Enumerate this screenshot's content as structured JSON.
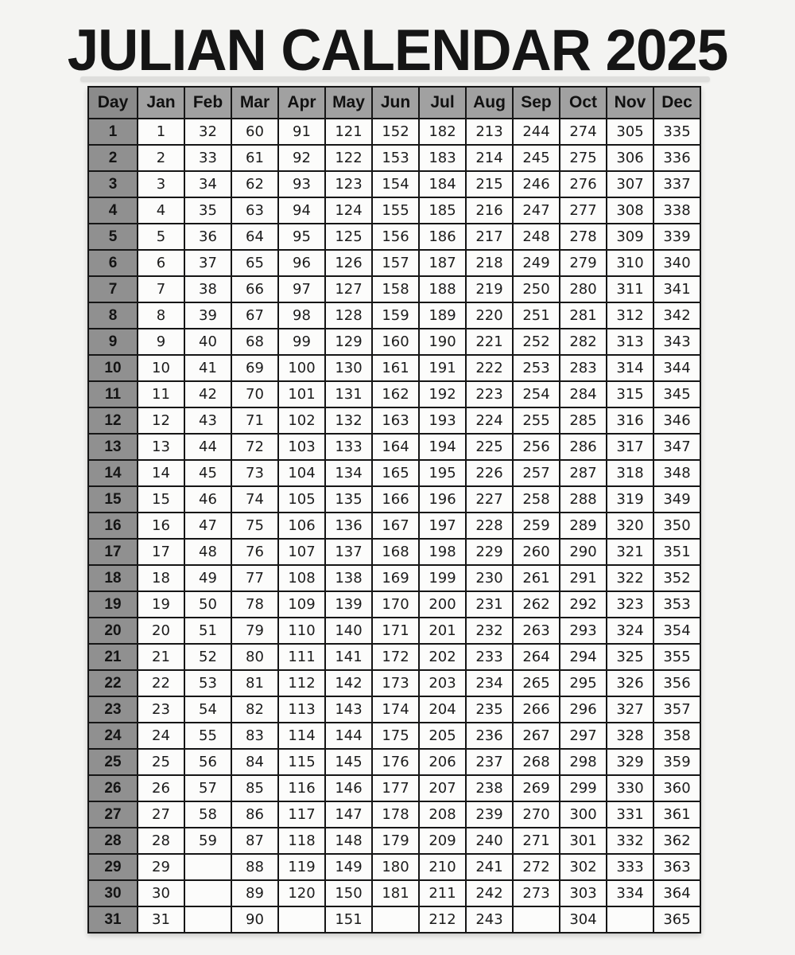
{
  "title": "JULIAN CALENDAR 2025",
  "colors": {
    "page_background": "#f4f4f2",
    "month_header_bg": "#a1a1a1",
    "day_header_bg": "#8b8b8b",
    "day_column_bg": "#909090",
    "data_cell_bg": "#fcfcfb",
    "border": "#161616",
    "title_text": "#151515"
  },
  "table": {
    "day_header": "Day",
    "months": [
      "Jan",
      "Feb",
      "Mar",
      "Apr",
      "May",
      "Jun",
      "Jul",
      "Aug",
      "Sep",
      "Oct",
      "Nov",
      "Dec"
    ],
    "rows": [
      {
        "day": "1",
        "values": [
          "1",
          "32",
          "60",
          "91",
          "121",
          "152",
          "182",
          "213",
          "244",
          "274",
          "305",
          "335"
        ]
      },
      {
        "day": "2",
        "values": [
          "2",
          "33",
          "61",
          "92",
          "122",
          "153",
          "183",
          "214",
          "245",
          "275",
          "306",
          "336"
        ]
      },
      {
        "day": "3",
        "values": [
          "3",
          "34",
          "62",
          "93",
          "123",
          "154",
          "184",
          "215",
          "246",
          "276",
          "307",
          "337"
        ]
      },
      {
        "day": "4",
        "values": [
          "4",
          "35",
          "63",
          "94",
          "124",
          "155",
          "185",
          "216",
          "247",
          "277",
          "308",
          "338"
        ]
      },
      {
        "day": "5",
        "values": [
          "5",
          "36",
          "64",
          "95",
          "125",
          "156",
          "186",
          "217",
          "248",
          "278",
          "309",
          "339"
        ]
      },
      {
        "day": "6",
        "values": [
          "6",
          "37",
          "65",
          "96",
          "126",
          "157",
          "187",
          "218",
          "249",
          "279",
          "310",
          "340"
        ]
      },
      {
        "day": "7",
        "values": [
          "7",
          "38",
          "66",
          "97",
          "127",
          "158",
          "188",
          "219",
          "250",
          "280",
          "311",
          "341"
        ]
      },
      {
        "day": "8",
        "values": [
          "8",
          "39",
          "67",
          "98",
          "128",
          "159",
          "189",
          "220",
          "251",
          "281",
          "312",
          "342"
        ]
      },
      {
        "day": "9",
        "values": [
          "9",
          "40",
          "68",
          "99",
          "129",
          "160",
          "190",
          "221",
          "252",
          "282",
          "313",
          "343"
        ]
      },
      {
        "day": "10",
        "values": [
          "10",
          "41",
          "69",
          "100",
          "130",
          "161",
          "191",
          "222",
          "253",
          "283",
          "314",
          "344"
        ]
      },
      {
        "day": "11",
        "values": [
          "11",
          "42",
          "70",
          "101",
          "131",
          "162",
          "192",
          "223",
          "254",
          "284",
          "315",
          "345"
        ]
      },
      {
        "day": "12",
        "values": [
          "12",
          "43",
          "71",
          "102",
          "132",
          "163",
          "193",
          "224",
          "255",
          "285",
          "316",
          "346"
        ]
      },
      {
        "day": "13",
        "values": [
          "13",
          "44",
          "72",
          "103",
          "133",
          "164",
          "194",
          "225",
          "256",
          "286",
          "317",
          "347"
        ]
      },
      {
        "day": "14",
        "values": [
          "14",
          "45",
          "73",
          "104",
          "134",
          "165",
          "195",
          "226",
          "257",
          "287",
          "318",
          "348"
        ]
      },
      {
        "day": "15",
        "values": [
          "15",
          "46",
          "74",
          "105",
          "135",
          "166",
          "196",
          "227",
          "258",
          "288",
          "319",
          "349"
        ]
      },
      {
        "day": "16",
        "values": [
          "16",
          "47",
          "75",
          "106",
          "136",
          "167",
          "197",
          "228",
          "259",
          "289",
          "320",
          "350"
        ]
      },
      {
        "day": "17",
        "values": [
          "17",
          "48",
          "76",
          "107",
          "137",
          "168",
          "198",
          "229",
          "260",
          "290",
          "321",
          "351"
        ]
      },
      {
        "day": "18",
        "values": [
          "18",
          "49",
          "77",
          "108",
          "138",
          "169",
          "199",
          "230",
          "261",
          "291",
          "322",
          "352"
        ]
      },
      {
        "day": "19",
        "values": [
          "19",
          "50",
          "78",
          "109",
          "139",
          "170",
          "200",
          "231",
          "262",
          "292",
          "323",
          "353"
        ]
      },
      {
        "day": "20",
        "values": [
          "20",
          "51",
          "79",
          "110",
          "140",
          "171",
          "201",
          "232",
          "263",
          "293",
          "324",
          "354"
        ]
      },
      {
        "day": "21",
        "values": [
          "21",
          "52",
          "80",
          "111",
          "141",
          "172",
          "202",
          "233",
          "264",
          "294",
          "325",
          "355"
        ]
      },
      {
        "day": "22",
        "values": [
          "22",
          "53",
          "81",
          "112",
          "142",
          "173",
          "203",
          "234",
          "265",
          "295",
          "326",
          "356"
        ]
      },
      {
        "day": "23",
        "values": [
          "23",
          "54",
          "82",
          "113",
          "143",
          "174",
          "204",
          "235",
          "266",
          "296",
          "327",
          "357"
        ]
      },
      {
        "day": "24",
        "values": [
          "24",
          "55",
          "83",
          "114",
          "144",
          "175",
          "205",
          "236",
          "267",
          "297",
          "328",
          "358"
        ]
      },
      {
        "day": "25",
        "values": [
          "25",
          "56",
          "84",
          "115",
          "145",
          "176",
          "206",
          "237",
          "268",
          "298",
          "329",
          "359"
        ]
      },
      {
        "day": "26",
        "values": [
          "26",
          "57",
          "85",
          "116",
          "146",
          "177",
          "207",
          "238",
          "269",
          "299",
          "330",
          "360"
        ]
      },
      {
        "day": "27",
        "values": [
          "27",
          "58",
          "86",
          "117",
          "147",
          "178",
          "208",
          "239",
          "270",
          "300",
          "331",
          "361"
        ]
      },
      {
        "day": "28",
        "values": [
          "28",
          "59",
          "87",
          "118",
          "148",
          "179",
          "209",
          "240",
          "271",
          "301",
          "332",
          "362"
        ]
      },
      {
        "day": "29",
        "values": [
          "29",
          "",
          "88",
          "119",
          "149",
          "180",
          "210",
          "241",
          "272",
          "302",
          "333",
          "363"
        ]
      },
      {
        "day": "30",
        "values": [
          "30",
          "",
          "89",
          "120",
          "150",
          "181",
          "211",
          "242",
          "273",
          "303",
          "334",
          "364"
        ]
      },
      {
        "day": "31",
        "values": [
          "31",
          "",
          "90",
          "",
          "151",
          "",
          "212",
          "243",
          "",
          "304",
          "",
          "365"
        ]
      }
    ]
  }
}
